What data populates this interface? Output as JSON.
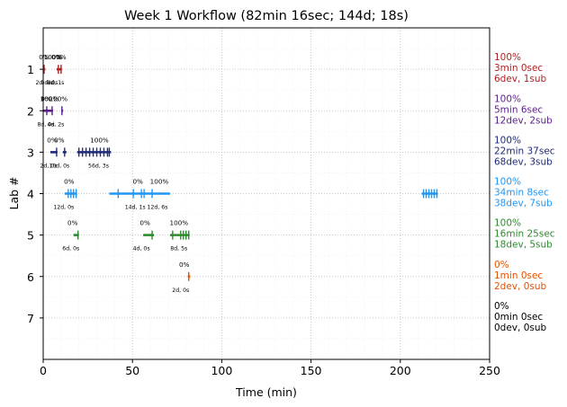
{
  "chart_data": {
    "type": "timeline",
    "title": "Week 1 Workflow (82min 16sec; 144d; 18s)",
    "xlabel": "Time (min)",
    "ylabel": "Lab #",
    "xlim": [
      0,
      250
    ],
    "ylim": [
      8,
      0
    ],
    "xticks": [
      "0",
      "50",
      "100",
      "150",
      "200",
      "250"
    ],
    "grid": true,
    "labs": [
      {
        "lab": "1",
        "color": "#b22222",
        "summary": [
          "100%",
          "3min 0sec",
          "6dev, 1sub"
        ],
        "segments": [
          [
            0.2,
            1.2
          ],
          [
            7.5,
            10.5
          ]
        ],
        "ticks": [
          0.5,
          8.5,
          10.0
        ],
        "upper": [
          {
            "x": 0.5,
            "text": "0%"
          },
          {
            "x": 5.5,
            "text": "100%"
          },
          {
            "x": 7.5,
            "text": "0%"
          },
          {
            "x": 10.0,
            "text": "0%"
          }
        ],
        "lower": [
          {
            "x": 0.5,
            "text": "2d, 0s"
          },
          {
            "x": 3.5,
            "text": "0d, 0s"
          },
          {
            "x": 7.0,
            "text": "4d, 1s"
          }
        ]
      },
      {
        "lab": "2",
        "color": "#5b1f8a",
        "summary": [
          "100%",
          "5min 6sec",
          "12dev, 2sub"
        ],
        "segments": [
          [
            0.0,
            5.5
          ],
          [
            10.2,
            11.2
          ]
        ],
        "ticks": [
          2.0,
          5.0,
          10.5
        ],
        "upper": [
          {
            "x": 1.5,
            "text": "0%"
          },
          {
            "x": 3.5,
            "text": "100%"
          },
          {
            "x": 8.5,
            "text": "100%"
          }
        ],
        "lower": [
          {
            "x": 1.5,
            "text": "8d, 0s"
          },
          {
            "x": 7.0,
            "text": "4d, 2s"
          }
        ]
      },
      {
        "lab": "3",
        "color": "#1f2a7a",
        "summary": [
          "100%",
          "22min 37sec",
          "68dev, 3sub"
        ],
        "segments": [
          [
            4.0,
            8.0
          ],
          [
            11.0,
            13.0
          ],
          [
            19.0,
            38.0
          ]
        ],
        "ticks": [
          7.5,
          12.0,
          20.0,
          22.0,
          24.0,
          26.0,
          28.0,
          30.0,
          32.0,
          34.0,
          36.0,
          37.0
        ],
        "upper": [
          {
            "x": 5.0,
            "text": "0%"
          },
          {
            "x": 9.0,
            "text": "0%"
          },
          {
            "x": 31.5,
            "text": "100%"
          }
        ],
        "lower": [
          {
            "x": 3.0,
            "text": "2d, 0s"
          },
          {
            "x": 9.0,
            "text": "10d, 0s"
          },
          {
            "x": 31.0,
            "text": "56d, 3s"
          }
        ]
      },
      {
        "lab": "4",
        "color": "#2196f3",
        "summary": [
          "100%",
          "34min 8sec",
          "38dev, 7sub"
        ],
        "segments": [
          [
            12.0,
            19.0
          ],
          [
            37.0,
            71.0
          ],
          [
            212.0,
            221.0
          ]
        ],
        "ticks": [
          14.0,
          15.5,
          17.0,
          18.5,
          42.0,
          50.5,
          55.0,
          56.5,
          61.0,
          213.0,
          214.5,
          216.0,
          217.5,
          219.0,
          220.5
        ],
        "upper": [
          {
            "x": 14.5,
            "text": "0%"
          },
          {
            "x": 53.0,
            "text": "0%"
          },
          {
            "x": 65.0,
            "text": "100%"
          }
        ],
        "lower": [
          {
            "x": 11.5,
            "text": "12d, 0s"
          },
          {
            "x": 51.5,
            "text": "14d, 1s"
          },
          {
            "x": 64.0,
            "text": "12d, 6s"
          }
        ]
      },
      {
        "lab": "5",
        "color": "#2e8b2e",
        "summary": [
          "100%",
          "16min 25sec",
          "18dev, 5sub"
        ],
        "segments": [
          [
            17.0,
            20.0
          ],
          [
            56.0,
            62.0
          ],
          [
            71.0,
            82.0
          ]
        ],
        "ticks": [
          19.5,
          61.0,
          72.5,
          77.0,
          78.5,
          80.0,
          81.5
        ],
        "upper": [
          {
            "x": 16.5,
            "text": "0%"
          },
          {
            "x": 57.0,
            "text": "0%"
          },
          {
            "x": 76.0,
            "text": "100%"
          }
        ],
        "lower": [
          {
            "x": 15.5,
            "text": "6d, 0s"
          },
          {
            "x": 55.0,
            "text": "4d, 0s"
          },
          {
            "x": 76.0,
            "text": "8d, 5s"
          }
        ]
      },
      {
        "lab": "6",
        "color": "#e65100",
        "summary": [
          "0%",
          "1min 0sec",
          "2dev, 0sub"
        ],
        "segments": [
          [
            81.0,
            82.3
          ]
        ],
        "ticks": [
          81.5
        ],
        "upper": [
          {
            "x": 79.0,
            "text": "0%"
          }
        ],
        "lower": [
          {
            "x": 77.0,
            "text": "2d, 0s"
          }
        ]
      },
      {
        "lab": "7",
        "color": "#000000",
        "summary": [
          "0%",
          "0min 0sec",
          "0dev, 0sub"
        ],
        "segments": [],
        "ticks": [],
        "upper": [],
        "lower": []
      }
    ]
  }
}
